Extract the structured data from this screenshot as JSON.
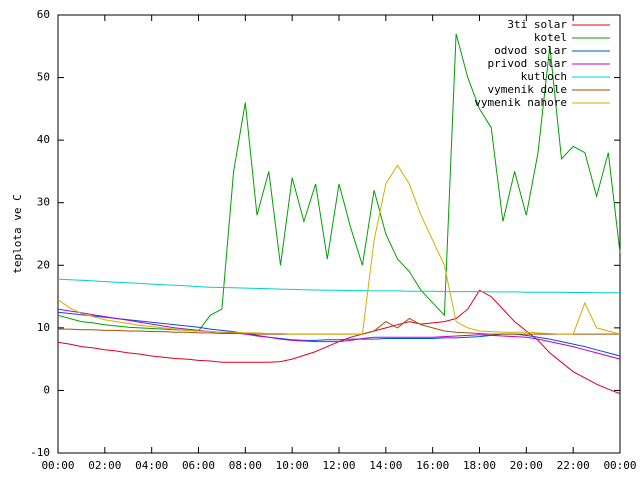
{
  "chart_data": {
    "type": "line",
    "ylabel": "teplota ve C",
    "x": [
      0,
      0.5,
      1,
      1.5,
      2,
      2.5,
      3,
      3.5,
      4,
      4.5,
      5,
      5.5,
      6,
      6.5,
      7,
      7.5,
      8,
      8.5,
      9,
      9.5,
      10,
      10.5,
      11,
      11.5,
      12,
      12.5,
      13,
      13.5,
      14,
      14.5,
      15,
      15.5,
      16,
      16.5,
      17,
      17.5,
      18,
      18.5,
      19,
      19.5,
      20,
      20.5,
      21,
      21.5,
      22,
      22.5,
      23,
      23.5,
      24
    ],
    "xlim": [
      0,
      24
    ],
    "xticks": [
      {
        "value": 0,
        "label": "00:00"
      },
      {
        "value": 2,
        "label": "02:00"
      },
      {
        "value": 4,
        "label": "04:00"
      },
      {
        "value": 6,
        "label": "06:00"
      },
      {
        "value": 8,
        "label": "08:00"
      },
      {
        "value": 10,
        "label": "10:00"
      },
      {
        "value": 12,
        "label": "12:00"
      },
      {
        "value": 14,
        "label": "14:00"
      },
      {
        "value": 16,
        "label": "16:00"
      },
      {
        "value": 18,
        "label": "18:00"
      },
      {
        "value": 20,
        "label": "20:00"
      },
      {
        "value": 22,
        "label": "22:00"
      },
      {
        "value": 24,
        "label": "00:00"
      }
    ],
    "ylim": [
      -10,
      60
    ],
    "yticks": [
      -10,
      0,
      10,
      20,
      30,
      40,
      50,
      60
    ],
    "legend": "top-right",
    "series": [
      {
        "name": "3ti solar",
        "color": "#e0001c",
        "values": [
          7.7,
          7.4,
          7,
          6.8,
          6.5,
          6.3,
          6,
          5.8,
          5.5,
          5.3,
          5.1,
          5,
          4.8,
          4.7,
          4.5,
          4.5,
          4.5,
          4.5,
          4.5,
          4.6,
          5,
          5.6,
          6.2,
          7,
          7.8,
          8.5,
          9,
          9.5,
          10,
          10.5,
          11,
          10.6,
          10.8,
          11,
          11.5,
          13,
          16,
          15,
          13,
          11,
          9.5,
          8,
          6,
          4.5,
          3,
          2,
          1,
          0.2,
          -0.5
        ]
      },
      {
        "name": "kotel",
        "color": "#00a000",
        "values": [
          12,
          11.5,
          11,
          10.8,
          10.5,
          10.3,
          10.1,
          10,
          9.9,
          9.8,
          9.7,
          9.6,
          9.5,
          12,
          13,
          35,
          46,
          28,
          35,
          20,
          34,
          27,
          33,
          21,
          33,
          26,
          20,
          32,
          25,
          21,
          19,
          16,
          14,
          12,
          57,
          50,
          45,
          42,
          27,
          35,
          28,
          38,
          55,
          37,
          39,
          38,
          31,
          38,
          22
        ]
      },
      {
        "name": "odvod solar",
        "color": "#0050e0",
        "values": [
          12.5,
          12.3,
          12.1,
          11.9,
          11.7,
          11.5,
          11.3,
          11.1,
          10.9,
          10.7,
          10.5,
          10.3,
          10.1,
          9.8,
          9.6,
          9.4,
          9.1,
          8.8,
          8.5,
          8.3,
          8.1,
          8,
          8,
          8.1,
          8.1,
          8.2,
          8.2,
          8.2,
          8.3,
          8.3,
          8.3,
          8.3,
          8.3,
          8.4,
          8.4,
          8.5,
          8.6,
          8.8,
          9,
          9,
          8.8,
          8.5,
          8.2,
          7.8,
          7.4,
          7,
          6.5,
          6,
          5.5
        ]
      },
      {
        "name": "privod solar",
        "color": "#c000c0",
        "values": [
          13,
          12.7,
          12.4,
          12.1,
          11.8,
          11.5,
          11.2,
          10.9,
          10.6,
          10.3,
          10,
          9.8,
          9.6,
          9.4,
          9.3,
          9.2,
          9,
          8.7,
          8.5,
          8.2,
          8,
          7.9,
          7.8,
          7.8,
          7.8,
          8,
          8.3,
          8.5,
          8.5,
          8.5,
          8.5,
          8.5,
          8.5,
          8.6,
          8.7,
          8.8,
          8.9,
          8.8,
          8.7,
          8.6,
          8.5,
          8.2,
          7.8,
          7.4,
          7,
          6.5,
          6,
          5.5,
          5
        ]
      },
      {
        "name": "kutloch",
        "color": "#00d0d0",
        "values": [
          17.8,
          17.7,
          17.6,
          17.5,
          17.4,
          17.3,
          17.2,
          17.1,
          17.0,
          16.9,
          16.8,
          16.7,
          16.6,
          16.5,
          16.45,
          16.4,
          16.35,
          16.3,
          16.25,
          16.2,
          16.15,
          16.1,
          16.05,
          16,
          16,
          15.95,
          15.95,
          15.9,
          15.9,
          15.9,
          15.85,
          15.85,
          15.85,
          15.8,
          15.8,
          15.8,
          15.8,
          15.75,
          15.75,
          15.75,
          15.7,
          15.7,
          15.7,
          15.7,
          15.65,
          15.65,
          15.6,
          15.6,
          15.6
        ]
      },
      {
        "name": "vymenik dole",
        "color": "#a05000",
        "values": [
          9.8,
          9.8,
          9.7,
          9.7,
          9.6,
          9.6,
          9.5,
          9.5,
          9.4,
          9.4,
          9.3,
          9.3,
          9.2,
          9.2,
          9.1,
          9.1,
          9.1,
          9,
          9,
          9,
          9,
          9,
          9,
          9,
          9,
          9,
          9,
          9.5,
          11,
          10,
          11.5,
          10.5,
          10,
          9.5,
          9.3,
          9.2,
          9.1,
          9,
          9,
          9,
          9,
          9,
          9,
          9,
          9,
          9,
          9,
          9,
          9
        ]
      },
      {
        "name": "vymenik nahore",
        "color": "#d0b000",
        "values": [
          14.5,
          13.2,
          12.3,
          11.8,
          11.3,
          11,
          10.7,
          10.4,
          10.2,
          10,
          9.8,
          9.6,
          9.5,
          9.4,
          9.3,
          9.3,
          9.2,
          9.2,
          9.1,
          9.1,
          9,
          9,
          9,
          9,
          9,
          9,
          9,
          24,
          33,
          36,
          33,
          28,
          24,
          20,
          11,
          10,
          9.5,
          9.4,
          9.3,
          9.3,
          9.3,
          9.2,
          9.1,
          9,
          9,
          14,
          10,
          9.5,
          9
        ]
      }
    ]
  }
}
